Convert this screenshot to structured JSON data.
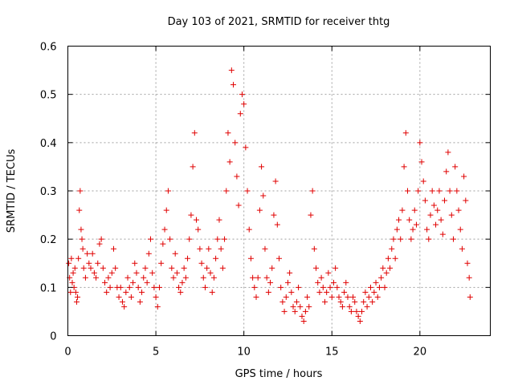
{
  "chart_data": {
    "type": "scatter",
    "title": "Day 103 of 2021, SRMTID for receiver thtg",
    "xlabel": "GPS time / hours",
    "ylabel": "SRMTID / TECUs",
    "xlim": [
      0,
      24
    ],
    "ylim": [
      0,
      0.6
    ],
    "xticks": [
      0,
      5,
      10,
      15,
      20
    ],
    "xtick_labels": [
      "0",
      "5",
      "10",
      "15",
      "20"
    ],
    "yticks": [
      0,
      0.1,
      0.2,
      0.3,
      0.4,
      0.5,
      0.6
    ],
    "ytick_labels": [
      "0",
      "0.1",
      "0.2",
      "0.3",
      "0.4",
      "0.5",
      "0.6"
    ],
    "grid": true,
    "marker": "plus",
    "series_color": "#e00000",
    "series": [
      {
        "name": "SRMTID",
        "points": [
          [
            0.05,
            0.15
          ],
          [
            0.1,
            0.12
          ],
          [
            0.15,
            0.09
          ],
          [
            0.2,
            0.16
          ],
          [
            0.25,
            0.11
          ],
          [
            0.3,
            0.13
          ],
          [
            0.35,
            0.1
          ],
          [
            0.4,
            0.14
          ],
          [
            0.45,
            0.09
          ],
          [
            0.5,
            0.07
          ],
          [
            0.55,
            0.08
          ],
          [
            0.6,
            0.16
          ],
          [
            0.65,
            0.26
          ],
          [
            0.7,
            0.3
          ],
          [
            0.75,
            0.22
          ],
          [
            0.8,
            0.2
          ],
          [
            0.85,
            0.18
          ],
          [
            0.9,
            0.14
          ],
          [
            1.0,
            0.12
          ],
          [
            1.1,
            0.17
          ],
          [
            1.2,
            0.15
          ],
          [
            1.3,
            0.14
          ],
          [
            1.4,
            0.17
          ],
          [
            1.5,
            0.13
          ],
          [
            1.6,
            0.12
          ],
          [
            1.7,
            0.15
          ],
          [
            1.8,
            0.19
          ],
          [
            1.9,
            0.2
          ],
          [
            2.0,
            0.14
          ],
          [
            2.1,
            0.11
          ],
          [
            2.2,
            0.09
          ],
          [
            2.3,
            0.12
          ],
          [
            2.4,
            0.1
          ],
          [
            2.5,
            0.13
          ],
          [
            2.6,
            0.18
          ],
          [
            2.7,
            0.14
          ],
          [
            2.8,
            0.1
          ],
          [
            2.9,
            0.08
          ],
          [
            3.0,
            0.1
          ],
          [
            3.1,
            0.07
          ],
          [
            3.2,
            0.06
          ],
          [
            3.3,
            0.09
          ],
          [
            3.4,
            0.12
          ],
          [
            3.5,
            0.1
          ],
          [
            3.6,
            0.08
          ],
          [
            3.7,
            0.11
          ],
          [
            3.8,
            0.15
          ],
          [
            3.9,
            0.13
          ],
          [
            4.0,
            0.1
          ],
          [
            4.1,
            0.07
          ],
          [
            4.2,
            0.09
          ],
          [
            4.3,
            0.12
          ],
          [
            4.4,
            0.14
          ],
          [
            4.5,
            0.11
          ],
          [
            4.6,
            0.17
          ],
          [
            4.7,
            0.2
          ],
          [
            4.8,
            0.13
          ],
          [
            4.9,
            0.1
          ],
          [
            5.0,
            0.08
          ],
          [
            5.1,
            0.06
          ],
          [
            5.2,
            0.1
          ],
          [
            5.3,
            0.15
          ],
          [
            5.4,
            0.19
          ],
          [
            5.5,
            0.22
          ],
          [
            5.6,
            0.26
          ],
          [
            5.7,
            0.3
          ],
          [
            5.8,
            0.2
          ],
          [
            5.9,
            0.14
          ],
          [
            6.0,
            0.12
          ],
          [
            6.1,
            0.17
          ],
          [
            6.2,
            0.13
          ],
          [
            6.3,
            0.1
          ],
          [
            6.4,
            0.09
          ],
          [
            6.5,
            0.11
          ],
          [
            6.6,
            0.14
          ],
          [
            6.7,
            0.12
          ],
          [
            6.8,
            0.16
          ],
          [
            6.9,
            0.2
          ],
          [
            7.0,
            0.25
          ],
          [
            7.1,
            0.35
          ],
          [
            7.2,
            0.42
          ],
          [
            7.3,
            0.24
          ],
          [
            7.4,
            0.22
          ],
          [
            7.5,
            0.18
          ],
          [
            7.6,
            0.15
          ],
          [
            7.7,
            0.12
          ],
          [
            7.8,
            0.1
          ],
          [
            7.9,
            0.14
          ],
          [
            8.0,
            0.18
          ],
          [
            8.1,
            0.13
          ],
          [
            8.2,
            0.09
          ],
          [
            8.3,
            0.12
          ],
          [
            8.4,
            0.16
          ],
          [
            8.5,
            0.2
          ],
          [
            8.6,
            0.24
          ],
          [
            8.7,
            0.18
          ],
          [
            8.8,
            0.14
          ],
          [
            8.9,
            0.2
          ],
          [
            9.0,
            0.3
          ],
          [
            9.1,
            0.42
          ],
          [
            9.2,
            0.36
          ],
          [
            9.3,
            0.55
          ],
          [
            9.4,
            0.52
          ],
          [
            9.5,
            0.4
          ],
          [
            9.6,
            0.33
          ],
          [
            9.7,
            0.27
          ],
          [
            9.8,
            0.46
          ],
          [
            9.9,
            0.5
          ],
          [
            10.0,
            0.48
          ],
          [
            10.1,
            0.39
          ],
          [
            10.2,
            0.3
          ],
          [
            10.3,
            0.22
          ],
          [
            10.4,
            0.16
          ],
          [
            10.5,
            0.12
          ],
          [
            10.6,
            0.1
          ],
          [
            10.7,
            0.08
          ],
          [
            10.8,
            0.12
          ],
          [
            10.9,
            0.26
          ],
          [
            11.0,
            0.35
          ],
          [
            11.1,
            0.29
          ],
          [
            11.2,
            0.18
          ],
          [
            11.3,
            0.12
          ],
          [
            11.4,
            0.09
          ],
          [
            11.5,
            0.11
          ],
          [
            11.6,
            0.14
          ],
          [
            11.7,
            0.25
          ],
          [
            11.8,
            0.32
          ],
          [
            11.9,
            0.23
          ],
          [
            12.0,
            0.16
          ],
          [
            12.1,
            0.1
          ],
          [
            12.2,
            0.07
          ],
          [
            12.3,
            0.05
          ],
          [
            12.4,
            0.08
          ],
          [
            12.5,
            0.11
          ],
          [
            12.6,
            0.13
          ],
          [
            12.7,
            0.09
          ],
          [
            12.8,
            0.06
          ],
          [
            12.9,
            0.05
          ],
          [
            13.0,
            0.07
          ],
          [
            13.1,
            0.1
          ],
          [
            13.2,
            0.06
          ],
          [
            13.3,
            0.04
          ],
          [
            13.4,
            0.03
          ],
          [
            13.5,
            0.05
          ],
          [
            13.6,
            0.08
          ],
          [
            13.7,
            0.06
          ],
          [
            13.8,
            0.25
          ],
          [
            13.9,
            0.3
          ],
          [
            14.0,
            0.18
          ],
          [
            14.1,
            0.14
          ],
          [
            14.2,
            0.11
          ],
          [
            14.3,
            0.09
          ],
          [
            14.4,
            0.12
          ],
          [
            14.5,
            0.1
          ],
          [
            14.6,
            0.07
          ],
          [
            14.7,
            0.09
          ],
          [
            14.8,
            0.13
          ],
          [
            14.9,
            0.1
          ],
          [
            15.0,
            0.08
          ],
          [
            15.1,
            0.11
          ],
          [
            15.2,
            0.14
          ],
          [
            15.3,
            0.1
          ],
          [
            15.4,
            0.08
          ],
          [
            15.5,
            0.07
          ],
          [
            15.6,
            0.06
          ],
          [
            15.7,
            0.09
          ],
          [
            15.8,
            0.11
          ],
          [
            15.9,
            0.08
          ],
          [
            16.0,
            0.06
          ],
          [
            16.1,
            0.05
          ],
          [
            16.2,
            0.08
          ],
          [
            16.3,
            0.07
          ],
          [
            16.4,
            0.05
          ],
          [
            16.5,
            0.04
          ],
          [
            16.6,
            0.03
          ],
          [
            16.7,
            0.05
          ],
          [
            16.8,
            0.07
          ],
          [
            16.9,
            0.09
          ],
          [
            17.0,
            0.06
          ],
          [
            17.1,
            0.08
          ],
          [
            17.2,
            0.1
          ],
          [
            17.3,
            0.07
          ],
          [
            17.4,
            0.09
          ],
          [
            17.5,
            0.11
          ],
          [
            17.6,
            0.08
          ],
          [
            17.7,
            0.1
          ],
          [
            17.8,
            0.12
          ],
          [
            17.9,
            0.14
          ],
          [
            18.0,
            0.1
          ],
          [
            18.1,
            0.13
          ],
          [
            18.2,
            0.16
          ],
          [
            18.3,
            0.14
          ],
          [
            18.4,
            0.18
          ],
          [
            18.5,
            0.2
          ],
          [
            18.6,
            0.16
          ],
          [
            18.7,
            0.22
          ],
          [
            18.8,
            0.24
          ],
          [
            18.9,
            0.2
          ],
          [
            19.0,
            0.26
          ],
          [
            19.1,
            0.35
          ],
          [
            19.2,
            0.42
          ],
          [
            19.3,
            0.3
          ],
          [
            19.4,
            0.24
          ],
          [
            19.5,
            0.2
          ],
          [
            19.6,
            0.22
          ],
          [
            19.7,
            0.26
          ],
          [
            19.8,
            0.23
          ],
          [
            19.9,
            0.3
          ],
          [
            20.0,
            0.4
          ],
          [
            20.1,
            0.36
          ],
          [
            20.2,
            0.32
          ],
          [
            20.3,
            0.28
          ],
          [
            20.4,
            0.22
          ],
          [
            20.5,
            0.2
          ],
          [
            20.6,
            0.25
          ],
          [
            20.7,
            0.3
          ],
          [
            20.8,
            0.27
          ],
          [
            20.9,
            0.23
          ],
          [
            21.0,
            0.26
          ],
          [
            21.1,
            0.3
          ],
          [
            21.2,
            0.24
          ],
          [
            21.3,
            0.21
          ],
          [
            21.4,
            0.28
          ],
          [
            21.5,
            0.34
          ],
          [
            21.6,
            0.38
          ],
          [
            21.7,
            0.3
          ],
          [
            21.8,
            0.25
          ],
          [
            21.9,
            0.2
          ],
          [
            22.0,
            0.35
          ],
          [
            22.1,
            0.3
          ],
          [
            22.2,
            0.26
          ],
          [
            22.3,
            0.22
          ],
          [
            22.4,
            0.18
          ],
          [
            22.5,
            0.33
          ],
          [
            22.6,
            0.28
          ],
          [
            22.7,
            0.15
          ],
          [
            22.8,
            0.12
          ],
          [
            22.85,
            0.08
          ]
        ]
      }
    ]
  }
}
